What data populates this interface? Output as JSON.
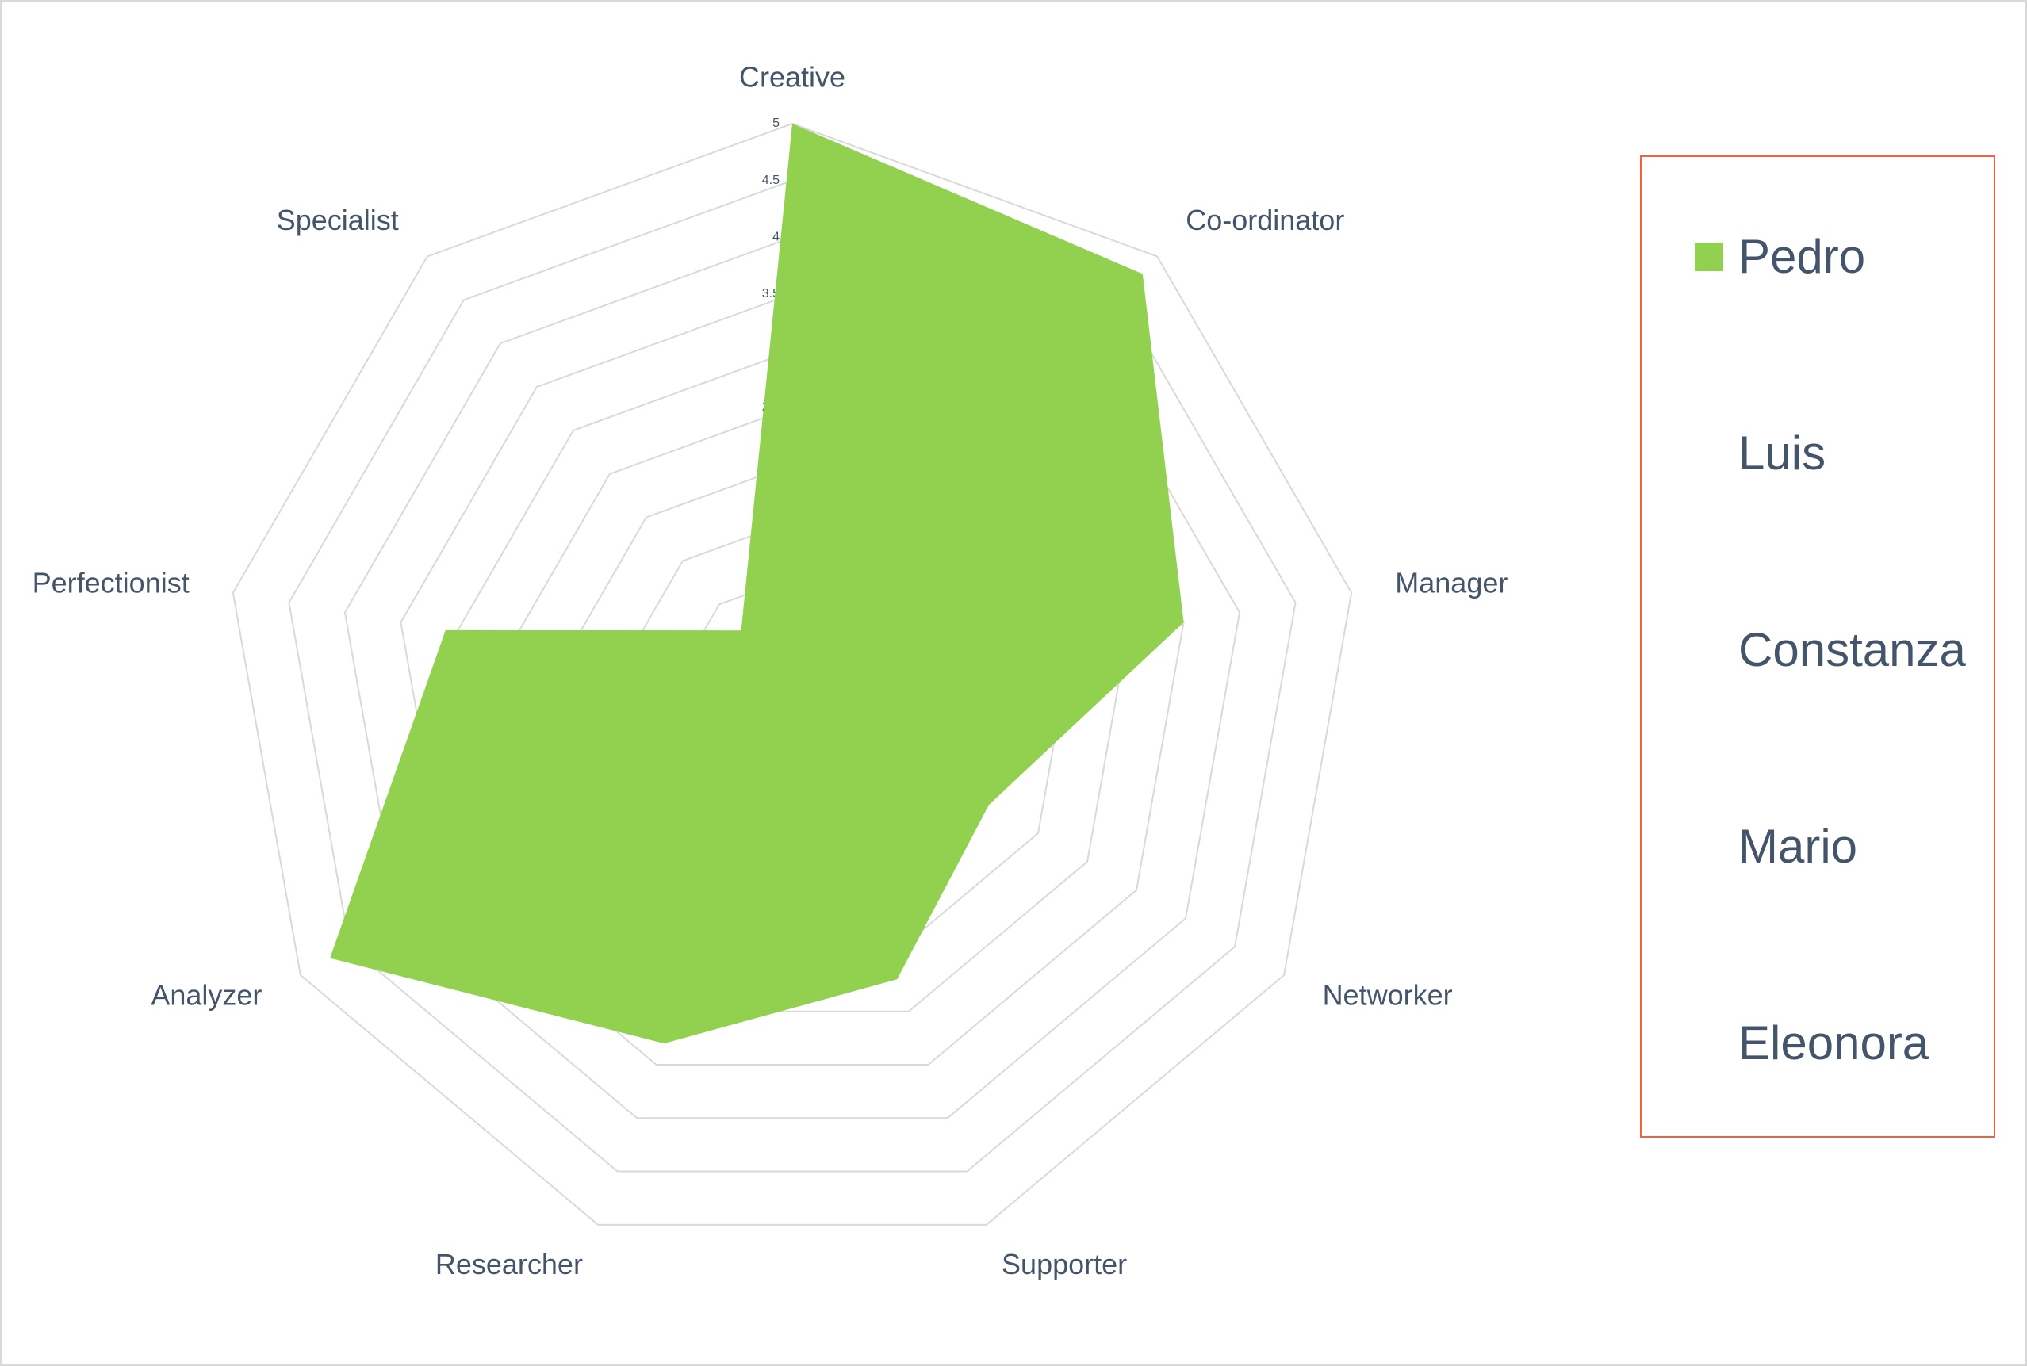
{
  "chart_data": {
    "type": "radar",
    "categories": [
      "Creative",
      "Co-ordinator",
      "Manager",
      "Networker",
      "Supporter",
      "Researcher",
      "Analyzer",
      "Perfectionist",
      "Specialist"
    ],
    "series": [
      {
        "name": "Pedro",
        "color": "#92d050",
        "values": [
          5,
          4.8,
          3.5,
          2,
          2.7,
          3.3,
          4.7,
          3.1,
          0.7
        ]
      },
      {
        "name": "Luis",
        "values": [
          null,
          null,
          null,
          null,
          null,
          null,
          null,
          null,
          null
        ]
      },
      {
        "name": "Constanza",
        "values": [
          null,
          null,
          null,
          null,
          null,
          null,
          null,
          null,
          null
        ]
      },
      {
        "name": "Mario",
        "values": [
          null,
          null,
          null,
          null,
          null,
          null,
          null,
          null,
          null
        ]
      },
      {
        "name": "Eleonora",
        "values": [
          null,
          null,
          null,
          null,
          null,
          null,
          null,
          null,
          null
        ]
      }
    ],
    "ylim": [
      0,
      5
    ],
    "yticks": [
      0,
      0.5,
      1,
      1.5,
      2,
      2.5,
      3,
      3.5,
      4,
      4.5,
      5
    ],
    "grid": true,
    "legend": "right"
  }
}
